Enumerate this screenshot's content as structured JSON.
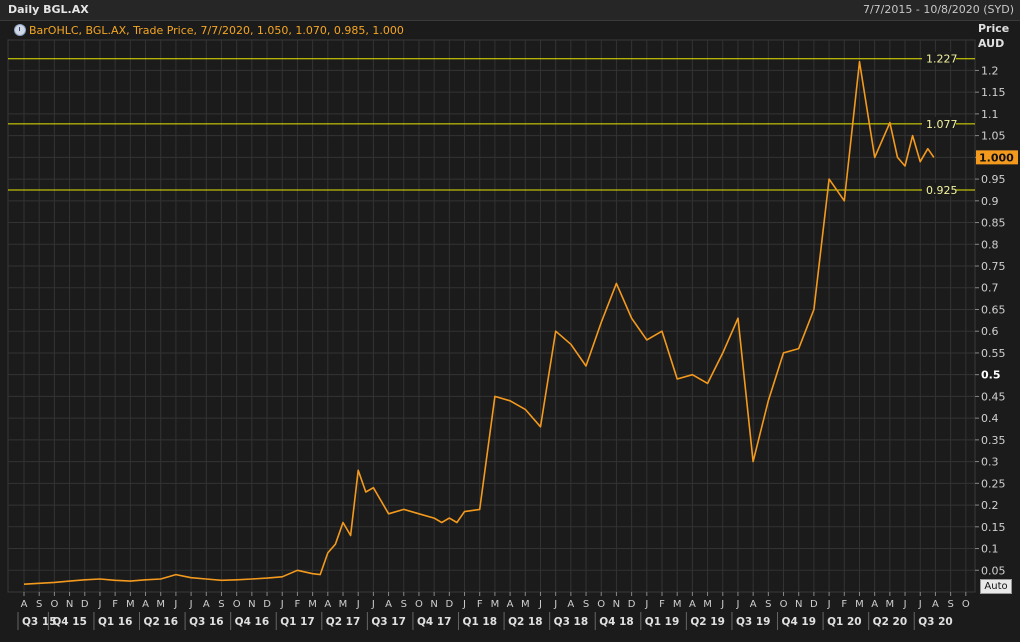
{
  "header": {
    "title": "Daily BGL.AX",
    "date_range": "7/7/2015 - 10/8/2020 (SYD)",
    "legend": "BarOHLC, BGL.AX, Trade Price,  7/7/2020, 1.050, 1.070, 0.985, 1.000"
  },
  "axis": {
    "price_label": "Price",
    "currency_label": "AUD",
    "auto_button": "Auto",
    "last_price": "1.000"
  },
  "colors": {
    "background": "#1b1b1b",
    "price_line": "#f39a1e",
    "hlines": "#e6e600",
    "grid": "#333333",
    "last_price_box": "#f39a1e"
  },
  "chart_data": {
    "type": "line",
    "title": "Daily BGL.AX",
    "ylabel": "Price AUD",
    "ylim": [
      0,
      1.27
    ],
    "yticks": [
      0.05,
      0.1,
      0.15,
      0.2,
      0.25,
      0.3,
      0.35,
      0.4,
      0.45,
      0.5,
      0.55,
      0.6,
      0.65,
      0.7,
      0.75,
      0.8,
      0.85,
      0.9,
      0.95,
      1,
      1.05,
      1.1,
      1.15,
      1.2
    ],
    "ytick_labels": [
      "0.05",
      "0.1",
      "0.15",
      "0.2",
      "0.25",
      "0.3",
      "0.35",
      "0.4",
      "0.45",
      "0.5",
      "0.55",
      "0.6",
      "0.65",
      "0.7",
      "0.75",
      "0.8",
      "0.85",
      "0.9",
      "0.95",
      "1",
      "1.05",
      "1.1",
      "1.15",
      "1.2"
    ],
    "grid": true,
    "month_labels": [
      "A",
      "S",
      "O",
      "N",
      "D",
      "J",
      "F",
      "M",
      "A",
      "M",
      "J",
      "J",
      "A",
      "S",
      "O",
      "N",
      "D",
      "J",
      "F",
      "M",
      "A",
      "M",
      "J",
      "J",
      "A",
      "S",
      "O",
      "N",
      "D",
      "J",
      "F",
      "M",
      "A",
      "M",
      "J",
      "J",
      "A",
      "S",
      "O",
      "N",
      "D",
      "J",
      "F",
      "M",
      "A",
      "M",
      "J",
      "J",
      "A",
      "S",
      "O",
      "N",
      "D",
      "J",
      "F",
      "M",
      "A",
      "M",
      "J",
      "J",
      "A",
      "S",
      "O"
    ],
    "quarter_labels": [
      "Q3 15",
      "Q4 15",
      "Q1 16",
      "Q2 16",
      "Q3 16",
      "Q4 16",
      "Q1 17",
      "Q2 17",
      "Q3 17",
      "Q4 17",
      "Q1 18",
      "Q2 18",
      "Q3 18",
      "Q4 18",
      "Q1 19",
      "Q2 19",
      "Q3 19",
      "Q4 19",
      "Q1 20",
      "Q2 20",
      "Q3 20"
    ],
    "reference_lines": [
      {
        "label": "1.227",
        "value": 1.227
      },
      {
        "label": "1.077",
        "value": 1.077
      },
      {
        "label": "0.925",
        "value": 0.925
      }
    ],
    "series": [
      {
        "x": [
          0,
          1,
          2,
          3,
          4,
          5,
          6,
          7,
          8,
          9,
          10,
          11,
          12,
          13,
          14,
          15,
          16,
          17,
          18,
          19,
          19.5,
          20,
          20.5,
          21,
          21.5,
          22,
          22.5,
          23,
          24,
          25,
          26,
          27,
          27.5,
          28,
          28.5,
          29,
          30,
          31,
          32,
          33,
          34,
          35,
          36,
          37,
          38,
          39,
          40,
          41,
          42,
          43,
          44,
          45,
          46,
          47,
          48,
          49,
          50,
          51,
          52,
          53,
          54,
          55,
          56,
          57,
          57.5,
          58,
          58.5,
          59,
          59.5,
          59.9
        ],
        "values": [
          0.018,
          0.02,
          0.022,
          0.025,
          0.028,
          0.03,
          0.027,
          0.025,
          0.028,
          0.03,
          0.04,
          0.033,
          0.03,
          0.027,
          0.028,
          0.03,
          0.032,
          0.035,
          0.05,
          0.042,
          0.04,
          0.09,
          0.11,
          0.16,
          0.13,
          0.28,
          0.23,
          0.24,
          0.18,
          0.19,
          0.18,
          0.17,
          0.16,
          0.17,
          0.16,
          0.185,
          0.19,
          0.45,
          0.44,
          0.42,
          0.38,
          0.6,
          0.57,
          0.52,
          0.62,
          0.71,
          0.63,
          0.58,
          0.6,
          0.49,
          0.5,
          0.48,
          0.55,
          0.63,
          0.3,
          0.44,
          0.55,
          0.56,
          0.65,
          0.95,
          0.9,
          1.22,
          1.0,
          1.08,
          1.0,
          0.98,
          1.05,
          0.99,
          1.02,
          1.0
        ]
      }
    ]
  }
}
